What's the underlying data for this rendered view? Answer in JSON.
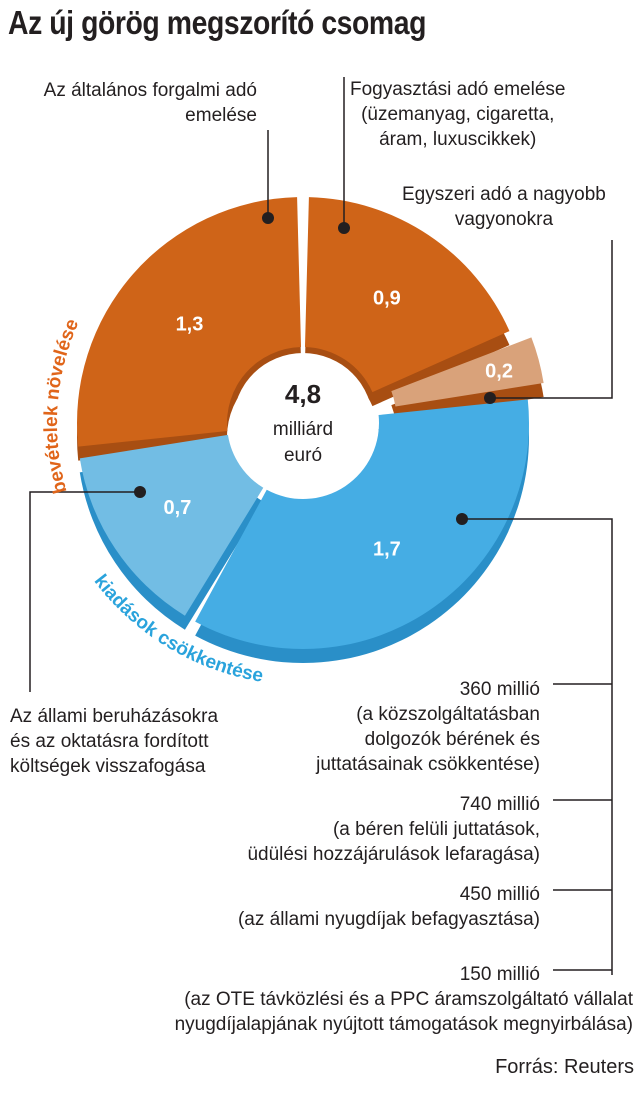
{
  "title": "Az új görög megszorító csomag",
  "colors": {
    "revenue": "#cf6418",
    "revenue_light": "#d9a27a",
    "cuts": "#45ade4",
    "cuts_light": "#72bde4",
    "revenue_label": "#e0651a",
    "cuts_label": "#2aa3dc"
  },
  "chart_data": {
    "type": "pie",
    "style": "donut",
    "total": "4,8",
    "total_unit_line1": "milliárd",
    "total_unit_line2": "euró",
    "groups": [
      {
        "name": "bevételek növelése",
        "slices": [
          "0,9",
          "0,2",
          "1,3"
        ]
      },
      {
        "name": "kiadások csökkentése",
        "slices": [
          "1,7",
          "0,7"
        ]
      }
    ],
    "slices": [
      {
        "value": 0.9,
        "label": "0,9",
        "group": "revenue"
      },
      {
        "value": 0.2,
        "label": "0,2",
        "group": "revenue"
      },
      {
        "value": 1.7,
        "label": "1,7",
        "group": "cuts"
      },
      {
        "value": 0.7,
        "label": "0,7",
        "group": "cuts"
      },
      {
        "value": 1.3,
        "label": "1,3",
        "group": "revenue"
      }
    ]
  },
  "annotations": {
    "vat": [
      "Az általános forgalmi adó",
      "emelése"
    ],
    "excise": [
      "Fogyasztási adó emelése",
      "(üzemanyag, cigaretta,",
      "áram, luxuscikkek)"
    ],
    "wealth": [
      "Egyszeri adó a nagyobb",
      "vagyonokra"
    ],
    "investment": [
      "Az állami beruházásokra",
      "és az oktatásra fordított",
      "költségek visszafogása"
    ]
  },
  "breakdown": [
    {
      "amount": "360 millió",
      "lines": [
        "(a közszolgáltatásban",
        "dolgozók bérének és",
        "juttatásainak csökkentése)"
      ]
    },
    {
      "amount": "740 millió",
      "lines": [
        "(a béren felüli juttatások,",
        "üdülési hozzájárulások lefaragása)"
      ]
    },
    {
      "amount": "450 millió",
      "lines": [
        "(az állami nyugdíjak befagyasztása)"
      ]
    },
    {
      "amount": "150 millió",
      "lines": [
        "(az OTE távközlési és a PPC áramszolgáltató vállalat",
        "nyugdíjalapjának  nyújtott támogatások megnyirbálása)"
      ]
    }
  ],
  "source": "Forrás: Reuters"
}
